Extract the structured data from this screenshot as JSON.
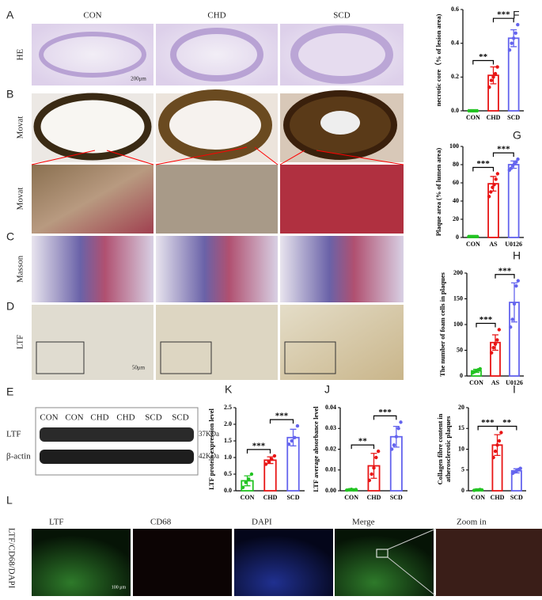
{
  "panel_letters": [
    "A",
    "B",
    "C",
    "D",
    "E",
    "F",
    "G",
    "H",
    "K",
    "J",
    "I",
    "L"
  ],
  "histology": {
    "columns": [
      "CON",
      "CHD",
      "SCD"
    ],
    "rows": [
      "HE",
      "Movat",
      "Movat",
      "Masson",
      "LTF"
    ],
    "scale_bars": [
      "200μm",
      "50μm"
    ]
  },
  "western_blot": {
    "lanes": [
      "CON",
      "CON",
      "CHD",
      "CHD",
      "SCD",
      "SCD"
    ],
    "bands": [
      "LTF",
      "β-actin"
    ],
    "sizes": [
      "37KDa",
      "42KDa"
    ]
  },
  "fluorescence": {
    "row_label": "LTF/CD68/DAPI",
    "columns": [
      "LTF",
      "CD68",
      "DAPI",
      "Merge",
      "Zoom in"
    ],
    "scale_bar": "100 μm"
  },
  "chart_data": [
    {
      "type": "bar",
      "ylabel": [
        "necrotic core（% of lesion area)"
      ],
      "categories": [
        "CON",
        "CHD",
        "SCD"
      ],
      "colors": [
        "#22c322",
        "#e81515",
        "#6464ee"
      ],
      "values": [
        0.0,
        0.21,
        0.43
      ],
      "errors": [
        0.005,
        0.05,
        0.05
      ],
      "points": [
        [
          0.0,
          0.0,
          0.0,
          0.0,
          0.0
        ],
        [
          0.14,
          0.18,
          0.2,
          0.22,
          0.26
        ],
        [
          0.36,
          0.4,
          0.43,
          0.46,
          0.51
        ]
      ],
      "ylim": [
        0,
        0.6
      ],
      "yticks": [
        {
          "value": 0,
          "label": "0.0"
        },
        0.2,
        0.4,
        0.6
      ],
      "annotations": [
        "**",
        "***"
      ]
    },
    {
      "type": "bar",
      "ylabel": [
        "Plaque area (% of lumen area)"
      ],
      "categories": [
        "CON",
        "AS",
        "U0126"
      ],
      "colors": [
        "#22c322",
        "#e81515",
        "#6464ee"
      ],
      "values": [
        1,
        59,
        80
      ],
      "errors": [
        0.5,
        8,
        4
      ],
      "points": [
        [
          1,
          1,
          1,
          1,
          1,
          1
        ],
        [
          45,
          50,
          55,
          58,
          64,
          70
        ],
        [
          74,
          76,
          79,
          81,
          83,
          86
        ]
      ],
      "ylim": [
        0,
        100
      ],
      "yticks": [
        0,
        20,
        40,
        60,
        80,
        100
      ],
      "annotations": [
        "***",
        "***"
      ]
    },
    {
      "type": "bar",
      "ylabel": [
        "The number of foam cells in plaques"
      ],
      "categories": [
        "CON",
        "AS",
        "U0126"
      ],
      "colors": [
        "#22c322",
        "#e81515",
        "#6464ee"
      ],
      "values": [
        10,
        65,
        143
      ],
      "errors": [
        3,
        15,
        38
      ],
      "points": [
        [
          6,
          8,
          10,
          12,
          14
        ],
        [
          45,
          55,
          62,
          70,
          90
        ],
        [
          95,
          110,
          140,
          175,
          185
        ]
      ],
      "ylim": [
        0,
        200
      ],
      "yticks": [
        0,
        50,
        100,
        150,
        200
      ],
      "annotations": [
        "***",
        "***"
      ]
    },
    {
      "type": "bar",
      "ylabel": [
        "LTF protein expression level"
      ],
      "categories": [
        "CON",
        "CHD",
        "SCD"
      ],
      "colors": [
        "#22c322",
        "#e81515",
        "#6464ee"
      ],
      "values": [
        0.3,
        0.92,
        1.6
      ],
      "errors": [
        0.15,
        0.1,
        0.25
      ],
      "points": [
        [
          0.1,
          0.25,
          0.35,
          0.5
        ],
        [
          0.8,
          0.88,
          0.95,
          1.05
        ],
        [
          1.4,
          1.5,
          1.6,
          1.95
        ]
      ],
      "ylim": [
        0,
        2.5
      ],
      "yticks": [
        {
          "value": 0,
          "label": "0.0"
        },
        0.5,
        {
          "value": 1,
          "label": "1.0"
        },
        1.5,
        {
          "value": 2,
          "label": "2.0"
        },
        2.5
      ],
      "annotations": [
        "***",
        "***"
      ]
    },
    {
      "type": "bar",
      "ylabel": [
        "LTF average absorbance level"
      ],
      "categories": [
        "CON",
        "CHD",
        "SCD"
      ],
      "colors": [
        "#22c322",
        "#e81515",
        "#6464ee"
      ],
      "values": [
        0.0005,
        0.012,
        0.026
      ],
      "errors": [
        0.0002,
        0.006,
        0.005
      ],
      "points": [
        [
          0.0003,
          0.0005,
          0.0007,
          0.0004,
          0.0006
        ],
        [
          0.005,
          0.008,
          0.011,
          0.016,
          0.019
        ],
        [
          0.02,
          0.022,
          0.026,
          0.03,
          0.033
        ]
      ],
      "ylim": [
        0,
        0.04
      ],
      "yticks": [
        {
          "value": 0,
          "label": "0.00"
        },
        0.01,
        0.02,
        0.03,
        {
          "value": 0.04,
          "label": "0.04"
        }
      ],
      "annotations": [
        "**",
        "***"
      ]
    },
    {
      "type": "bar",
      "ylabel": [
        "Collagen fibre content in",
        "atherosclerotic plaques"
      ],
      "categories": [
        "CON",
        "CHD",
        "SCD"
      ],
      "colors": [
        "#22c322",
        "#e81515",
        "#6464ee"
      ],
      "values": [
        0.2,
        11,
        4.8
      ],
      "errors": [
        0.1,
        2.5,
        0.5
      ],
      "points": [
        [
          0.1,
          0.2,
          0.2,
          0.3,
          0.2
        ],
        [
          8,
          9.5,
          11,
          12,
          14
        ],
        [
          4.2,
          4.5,
          4.8,
          5.1,
          5.4
        ]
      ],
      "ylim": [
        0,
        20
      ],
      "yticks": [
        0,
        5,
        10,
        15,
        20
      ],
      "annotations": [
        "***",
        "**"
      ]
    }
  ]
}
